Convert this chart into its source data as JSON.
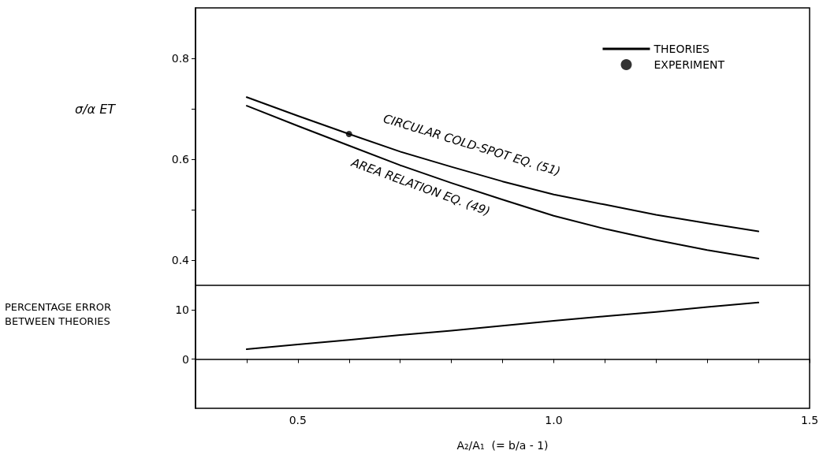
{
  "chart_data": [
    {
      "type": "line",
      "ylabel": "σ/α ET",
      "xlim": [
        0.3,
        1.5
      ],
      "ylim": [
        0.35,
        0.9
      ],
      "yticks": [
        0.4,
        {
          "value": 0.5,
          "label": null
        },
        0.6,
        {
          "value": 0.7,
          "label": null
        },
        0.8
      ],
      "tick_labels": "y",
      "legend": "top right",
      "marker": "none",
      "line_style": "solid",
      "annotations": [
        "CIRCULAR COLD-SPOT EQ. (51)",
        "AREA RELATION EQ. (49)"
      ],
      "series": [
        {
          "name": "THEORIES",
          "color": "#000000",
          "x": [
            0.4,
            0.5,
            0.6,
            0.7,
            0.8,
            0.9,
            1.0,
            1.1,
            1.2,
            1.3,
            1.4
          ],
          "values": [
            0.723,
            0.686,
            0.65,
            0.615,
            0.585,
            0.556,
            0.53,
            0.51,
            0.49,
            0.473,
            0.457
          ]
        },
        {
          "color": "#000000",
          "x": [
            0.4,
            0.5,
            0.6,
            0.7,
            0.8,
            0.9,
            1.0,
            1.1,
            1.2,
            1.3,
            1.4
          ],
          "values": [
            0.706,
            0.666,
            0.627,
            0.588,
            0.553,
            0.52,
            0.488,
            0.462,
            0.44,
            0.42,
            0.403
          ]
        },
        {
          "name": "EXPERIMENT",
          "type": "scatter",
          "marker": "circle",
          "color": "#000000",
          "x": [
            0.6
          ],
          "values": [
            0.65
          ]
        }
      ]
    },
    {
      "type": "line",
      "xlabel": "A₂/A₁  (= b/a - 1)",
      "ylabel": "PERCENTAGE ERROR BETWEEN THEORIES",
      "xlim": [
        0.3,
        1.5
      ],
      "xticks": [
        {
          "value": 0.4,
          "label": null
        },
        {
          "value": 0.5,
          "label": "0.5"
        },
        {
          "value": 0.6,
          "label": null
        },
        {
          "value": 0.7,
          "label": null
        },
        {
          "value": 0.8,
          "label": null
        },
        {
          "value": 0.9,
          "label": null
        },
        {
          "value": 1.0,
          "label": "1.0"
        },
        {
          "value": 1.1,
          "label": null
        },
        {
          "value": 1.2,
          "label": null
        },
        {
          "value": 1.3,
          "label": null
        },
        {
          "value": 1.4,
          "label": null
        },
        {
          "value": 1.5,
          "label": "1.5"
        }
      ],
      "ylim": [
        -10,
        15
      ],
      "yticks": [
        0,
        10
      ],
      "marker": "none",
      "line_style": "solid",
      "series": [
        {
          "color": "#000000",
          "x": [
            0.4,
            0.5,
            0.6,
            0.7,
            0.8,
            0.9,
            1.0,
            1.1,
            1.2,
            1.3,
            1.4
          ],
          "values": [
            2.0,
            3.0,
            3.9,
            4.9,
            5.8,
            6.8,
            7.8,
            8.7,
            9.6,
            10.6,
            11.5
          ]
        }
      ]
    }
  ]
}
